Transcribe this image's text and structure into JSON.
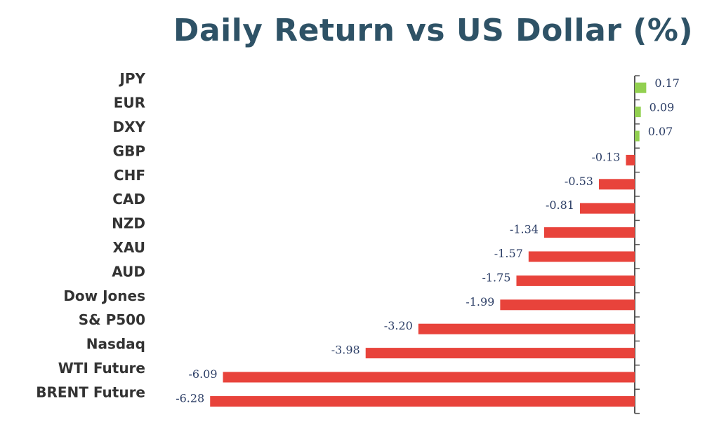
{
  "chart_data": {
    "type": "bar",
    "orientation": "horizontal",
    "title": "Daily Return vs US Dollar (%)",
    "xlabel": "",
    "ylabel": "",
    "categories": [
      "JPY",
      "EUR",
      "DXY",
      "GBP",
      "CHF",
      "CAD",
      "NZD",
      "XAU",
      "AUD",
      "Dow Jones",
      "S& P500",
      "Nasdaq",
      "WTI Future",
      "BRENT Future"
    ],
    "values": [
      0.17,
      0.09,
      0.07,
      -0.13,
      -0.53,
      -0.81,
      -1.34,
      -1.57,
      -1.75,
      -1.99,
      -3.2,
      -3.98,
      -6.09,
      -6.28
    ],
    "value_labels": [
      "0.17",
      "0.09",
      "0.07",
      "-0.13",
      "-0.53",
      "-0.81",
      "-1.34",
      "-1.57",
      "-1.75",
      "-1.99",
      "-3.20",
      "-3.98",
      "-6.09",
      "-6.28"
    ],
    "colors": {
      "positive": "#92d050",
      "negative": "#e8433b",
      "axis": "#555555",
      "title": "#2e5266"
    },
    "grid": false,
    "legend": "none"
  }
}
